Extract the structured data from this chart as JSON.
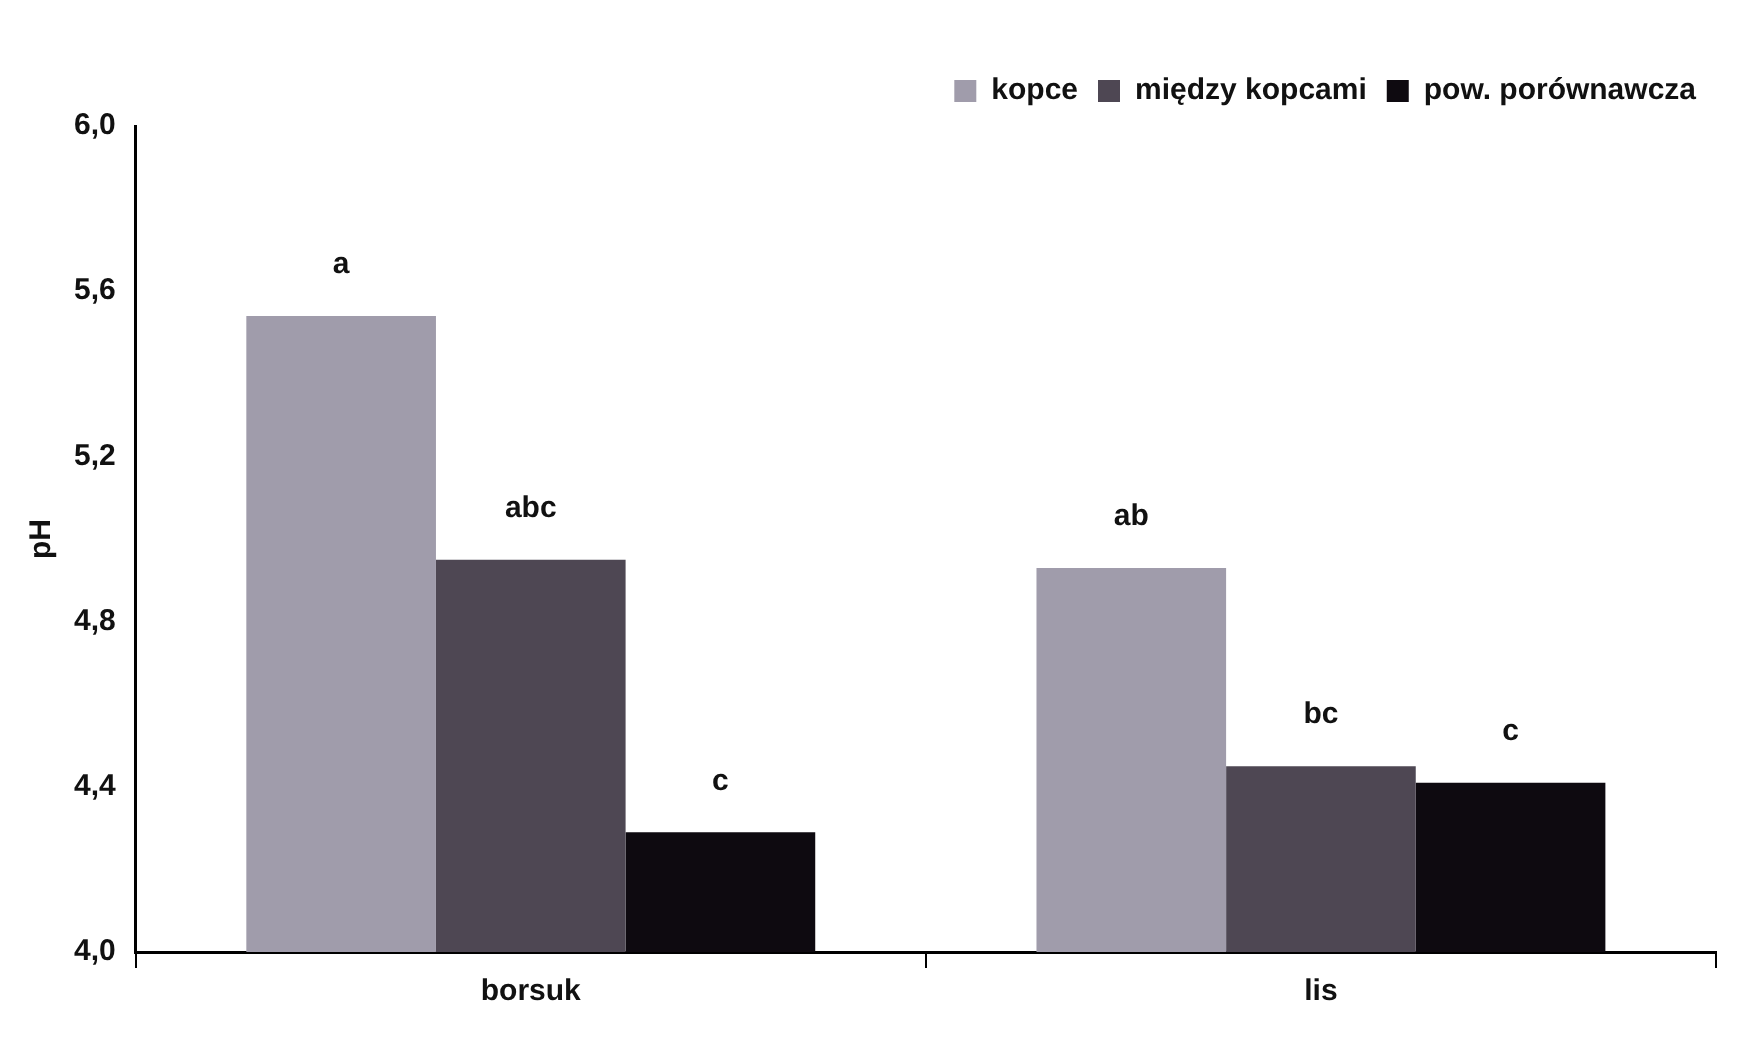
{
  "chart_data": {
    "type": "bar",
    "ylabel": "pH",
    "categories": [
      "borsuk",
      "lis"
    ],
    "series": [
      {
        "name": "kopce",
        "color": "#a09cab",
        "values": [
          5.54,
          4.93
        ],
        "value_labels": [
          "a",
          "ab"
        ]
      },
      {
        "name": "między kopcami",
        "color": "#4e4753",
        "values": [
          4.95,
          4.45
        ],
        "value_labels": [
          "abc",
          "bc"
        ]
      },
      {
        "name": "pow. porównawcza",
        "color": "#0e0a10",
        "values": [
          4.29,
          4.41
        ],
        "value_labels": [
          "c",
          "c"
        ]
      }
    ],
    "ylim": [
      4,
      6
    ],
    "yticks": [
      {
        "value": 4,
        "label": "4,0"
      },
      {
        "value": 4.4,
        "label": "4,4"
      },
      {
        "value": 4.8,
        "label": "4,8"
      },
      {
        "value": 5.2,
        "label": "5,2"
      },
      {
        "value": 5.6,
        "label": "5,6"
      },
      {
        "value": 6,
        "label": "6,0"
      }
    ],
    "grid": false,
    "legend": "top right"
  }
}
